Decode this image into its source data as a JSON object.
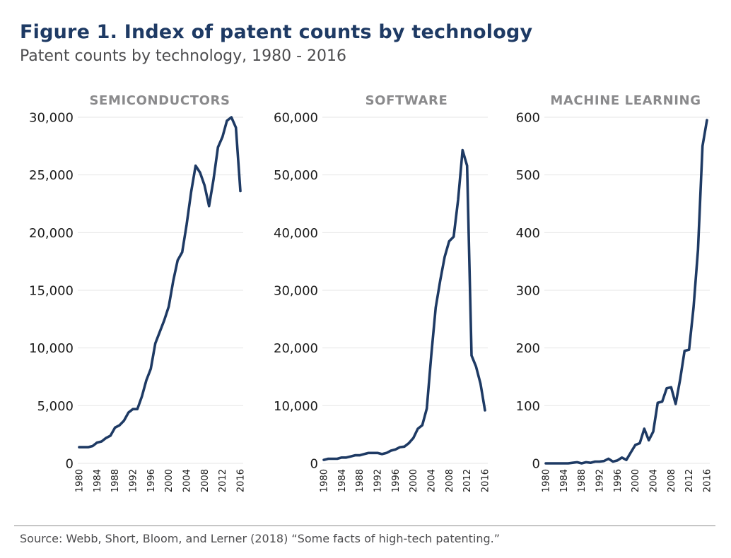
{
  "title": "Figure 1. Index of patent counts by technology",
  "subtitle": "Patent counts by technology, 1980 - 2016",
  "source": "Source: Webb, Short, Bloom, and Lerner (2018) “Some facts of high-tech patenting.”",
  "colors": {
    "title": "#1e3a64",
    "line": "#1e3a64",
    "panel_title": "#8a8a8c",
    "grid": "#e6e6e6"
  },
  "chart_data": [
    {
      "type": "line",
      "title": "SEMICONDUCTORS",
      "xlabel": "",
      "ylabel": "",
      "x": [
        1980,
        1981,
        1982,
        1983,
        1984,
        1985,
        1986,
        1987,
        1988,
        1989,
        1990,
        1991,
        1992,
        1993,
        1994,
        1995,
        1996,
        1997,
        1998,
        1999,
        2000,
        2001,
        2002,
        2003,
        2004,
        2005,
        2006,
        2007,
        2008,
        2009,
        2010,
        2011,
        2012,
        2013,
        2014,
        2015,
        2016
      ],
      "series": [
        {
          "name": "Semiconductors",
          "values": [
            1400,
            1400,
            1400,
            1500,
            1800,
            1900,
            2200,
            2400,
            3100,
            3300,
            3700,
            4400,
            4700,
            4700,
            5800,
            7200,
            8200,
            10400,
            11400,
            12400,
            13600,
            15800,
            17600,
            18300,
            20700,
            23500,
            25800,
            25200,
            24100,
            22300,
            24600,
            27400,
            28300,
            29700,
            30000,
            29100,
            23600
          ]
        }
      ],
      "ylim": [
        0,
        30000
      ],
      "yticks": [
        0,
        5000,
        10000,
        15000,
        20000,
        25000,
        30000
      ],
      "ytick_labels": [
        "0",
        "5,000",
        "10,000",
        "15,000",
        "20,000",
        "25,000",
        "30,000"
      ],
      "xticks": [
        1980,
        1984,
        1988,
        1992,
        1996,
        2000,
        2004,
        2008,
        2012,
        2016
      ],
      "grid": true
    },
    {
      "type": "line",
      "title": "SOFTWARE",
      "xlabel": "",
      "ylabel": "",
      "x": [
        1980,
        1981,
        1982,
        1983,
        1984,
        1985,
        1986,
        1987,
        1988,
        1989,
        1990,
        1991,
        1992,
        1993,
        1994,
        1995,
        1996,
        1997,
        1998,
        1999,
        2000,
        2001,
        2002,
        2003,
        2004,
        2005,
        2006,
        2007,
        2008,
        2009,
        2010,
        2011,
        2012,
        2013,
        2014,
        2015,
        2016
      ],
      "series": [
        {
          "name": "Software",
          "values": [
            600,
            800,
            800,
            800,
            1000,
            1000,
            1200,
            1400,
            1400,
            1600,
            1800,
            1800,
            1800,
            1600,
            1800,
            2200,
            2400,
            2800,
            2900,
            3500,
            4400,
            6000,
            6600,
            9500,
            18700,
            27000,
            31700,
            35800,
            38500,
            39300,
            45700,
            54300,
            51600,
            18700,
            16800,
            13800,
            9200
          ]
        }
      ],
      "ylim": [
        0,
        60000
      ],
      "yticks": [
        0,
        10000,
        20000,
        30000,
        40000,
        50000,
        60000
      ],
      "ytick_labels": [
        "0",
        "10,000",
        "20,000",
        "30,000",
        "40,000",
        "50,000",
        "60,000"
      ],
      "xticks": [
        1980,
        1984,
        1988,
        1992,
        1996,
        2000,
        2004,
        2008,
        2012,
        2016
      ],
      "grid": true
    },
    {
      "type": "line",
      "title": "MACHINE LEARNING",
      "xlabel": "",
      "ylabel": "",
      "x": [
        1980,
        1981,
        1982,
        1983,
        1984,
        1985,
        1986,
        1987,
        1988,
        1989,
        1990,
        1991,
        1992,
        1993,
        1994,
        1995,
        1996,
        1997,
        1998,
        1999,
        2000,
        2001,
        2002,
        2003,
        2004,
        2005,
        2006,
        2007,
        2008,
        2009,
        2010,
        2011,
        2012,
        2013,
        2014,
        2015,
        2016
      ],
      "series": [
        {
          "name": "Machine learning",
          "values": [
            0,
            0,
            0,
            0,
            0,
            0,
            1,
            2,
            0,
            2,
            1,
            3,
            3,
            4,
            8,
            3,
            5,
            10,
            6,
            19,
            32,
            35,
            60,
            40,
            55,
            105,
            107,
            130,
            132,
            103,
            145,
            195,
            197,
            270,
            370,
            550,
            595
          ]
        }
      ],
      "ylim": [
        0,
        600
      ],
      "yticks": [
        0,
        100,
        200,
        300,
        400,
        500,
        600
      ],
      "ytick_labels": [
        "0",
        "100",
        "200",
        "300",
        "400",
        "500",
        "600"
      ],
      "xticks": [
        1980,
        1984,
        1988,
        1992,
        1996,
        2000,
        2004,
        2008,
        2012,
        2016
      ],
      "grid": true
    }
  ]
}
